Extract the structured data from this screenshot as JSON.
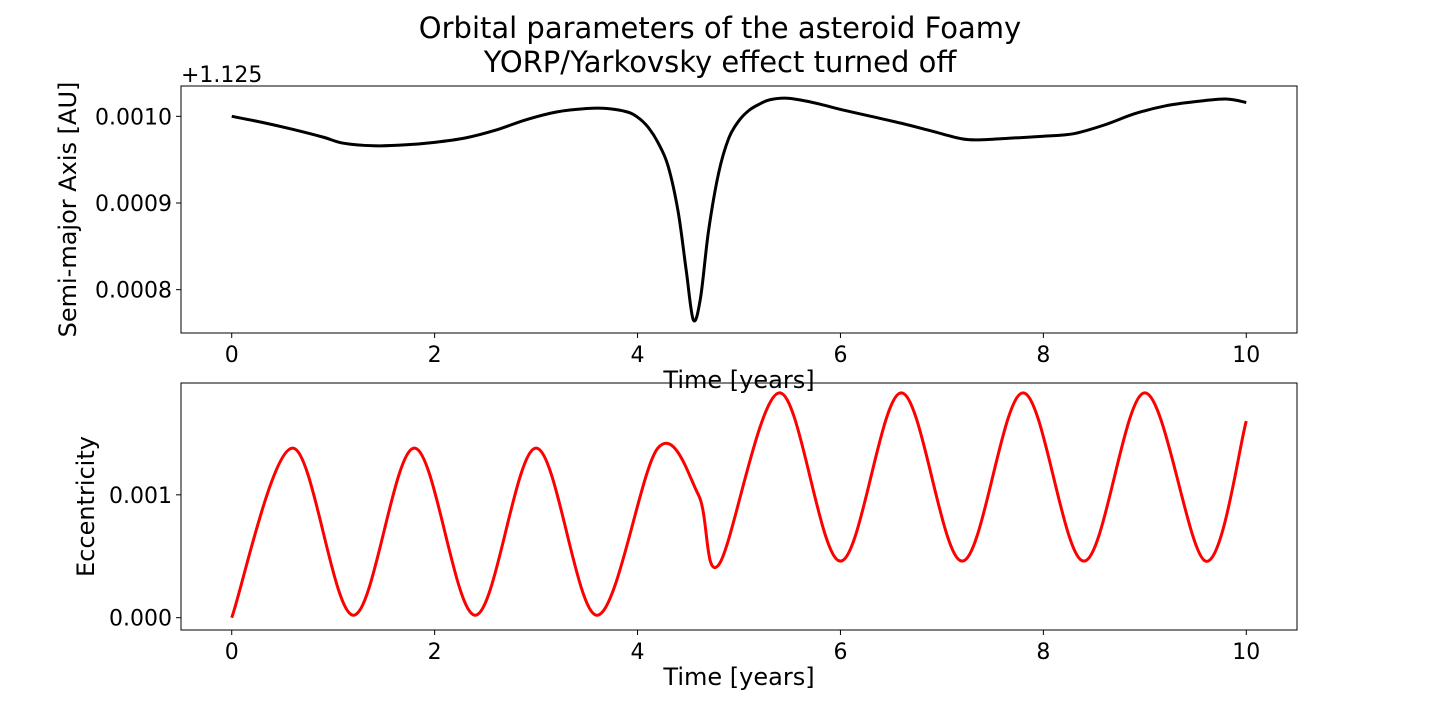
{
  "title_lines": [
    "Orbital parameters of the asteroid Foamy",
    "YORP/Yarkovsky effect turned off"
  ],
  "chart_data": [
    {
      "type": "line",
      "name": "semi-major-axis",
      "xlabel": "Time [years]",
      "ylabel": "Semi-major Axis [AU]",
      "offset_label": "+1.125",
      "xlim": [
        -0.5,
        10.5
      ],
      "ylim": [
        0.00075,
        0.001035
      ],
      "xticks": [
        0,
        2,
        4,
        6,
        8,
        10
      ],
      "xtick_labels": [
        "0",
        "2",
        "4",
        "6",
        "8",
        "10"
      ],
      "yticks": [
        0.0008,
        0.0009,
        0.001
      ],
      "ytick_labels": [
        "0.0008",
        "0.0009",
        "0.0010"
      ],
      "color": "#000000",
      "grid": false,
      "series": [
        {
          "x": [
            0,
            0.3,
            0.6,
            0.9,
            1.1,
            1.4,
            1.7,
            2.0,
            2.3,
            2.6,
            2.9,
            3.2,
            3.5,
            3.7,
            3.9,
            4.0,
            4.1,
            4.2,
            4.3,
            4.4,
            4.48,
            4.55,
            4.62,
            4.7,
            4.8,
            4.9,
            5.0,
            5.1,
            5.2,
            5.3,
            5.45,
            5.6,
            5.8,
            6.0,
            6.3,
            6.6,
            6.9,
            7.2,
            7.4,
            7.7,
            8.0,
            8.3,
            8.6,
            8.9,
            9.2,
            9.5,
            9.8,
            10.0
          ],
          "y": [
            0.001,
            0.000993,
            0.000985,
            0.000976,
            0.000969,
            0.000966,
            0.000967,
            0.00097,
            0.000975,
            0.000984,
            0.000996,
            0.001005,
            0.001009,
            0.001009,
            0.001005,
            0.000999,
            0.000988,
            0.00097,
            0.000943,
            0.00089,
            0.000822,
            0.000765,
            0.00079,
            0.000868,
            0.000935,
            0.000975,
            0.000995,
            0.001007,
            0.001014,
            0.001019,
            0.001021,
            0.001019,
            0.001014,
            0.001008,
            0.001,
            0.000992,
            0.000983,
            0.000974,
            0.000973,
            0.000975,
            0.000977,
            0.00098,
            0.00099,
            0.001003,
            0.001012,
            0.001017,
            0.00102,
            0.001016
          ]
        }
      ]
    },
    {
      "type": "line",
      "name": "eccentricity",
      "xlabel": "Time [years]",
      "ylabel": "Eccentricity",
      "xlim": [
        -0.5,
        10.5
      ],
      "ylim": [
        -0.0001,
        0.00191
      ],
      "xticks": [
        0,
        2,
        4,
        6,
        8,
        10
      ],
      "xtick_labels": [
        "0",
        "2",
        "4",
        "6",
        "8",
        "10"
      ],
      "yticks": [
        0.0,
        0.001
      ],
      "ytick_labels": [
        "0.000",
        "0.001"
      ],
      "color": "#ff0000",
      "grid": false,
      "series": [
        {
          "x": [
            0,
            0.6,
            1.2,
            1.8,
            2.4,
            3.0,
            3.6,
            4.2,
            4.6,
            4.8,
            5.4,
            6.0,
            6.6,
            7.2,
            7.8,
            8.4,
            9.0,
            9.6,
            10.0
          ],
          "y": [
            0.0,
            0.00138,
            2e-05,
            0.00138,
            2e-05,
            0.00138,
            2e-05,
            0.00138,
            0.001,
            0.00043,
            0.00183,
            0.00046,
            0.00183,
            0.00046,
            0.00183,
            0.00046,
            0.00183,
            0.00046,
            0.0016
          ]
        }
      ]
    }
  ]
}
